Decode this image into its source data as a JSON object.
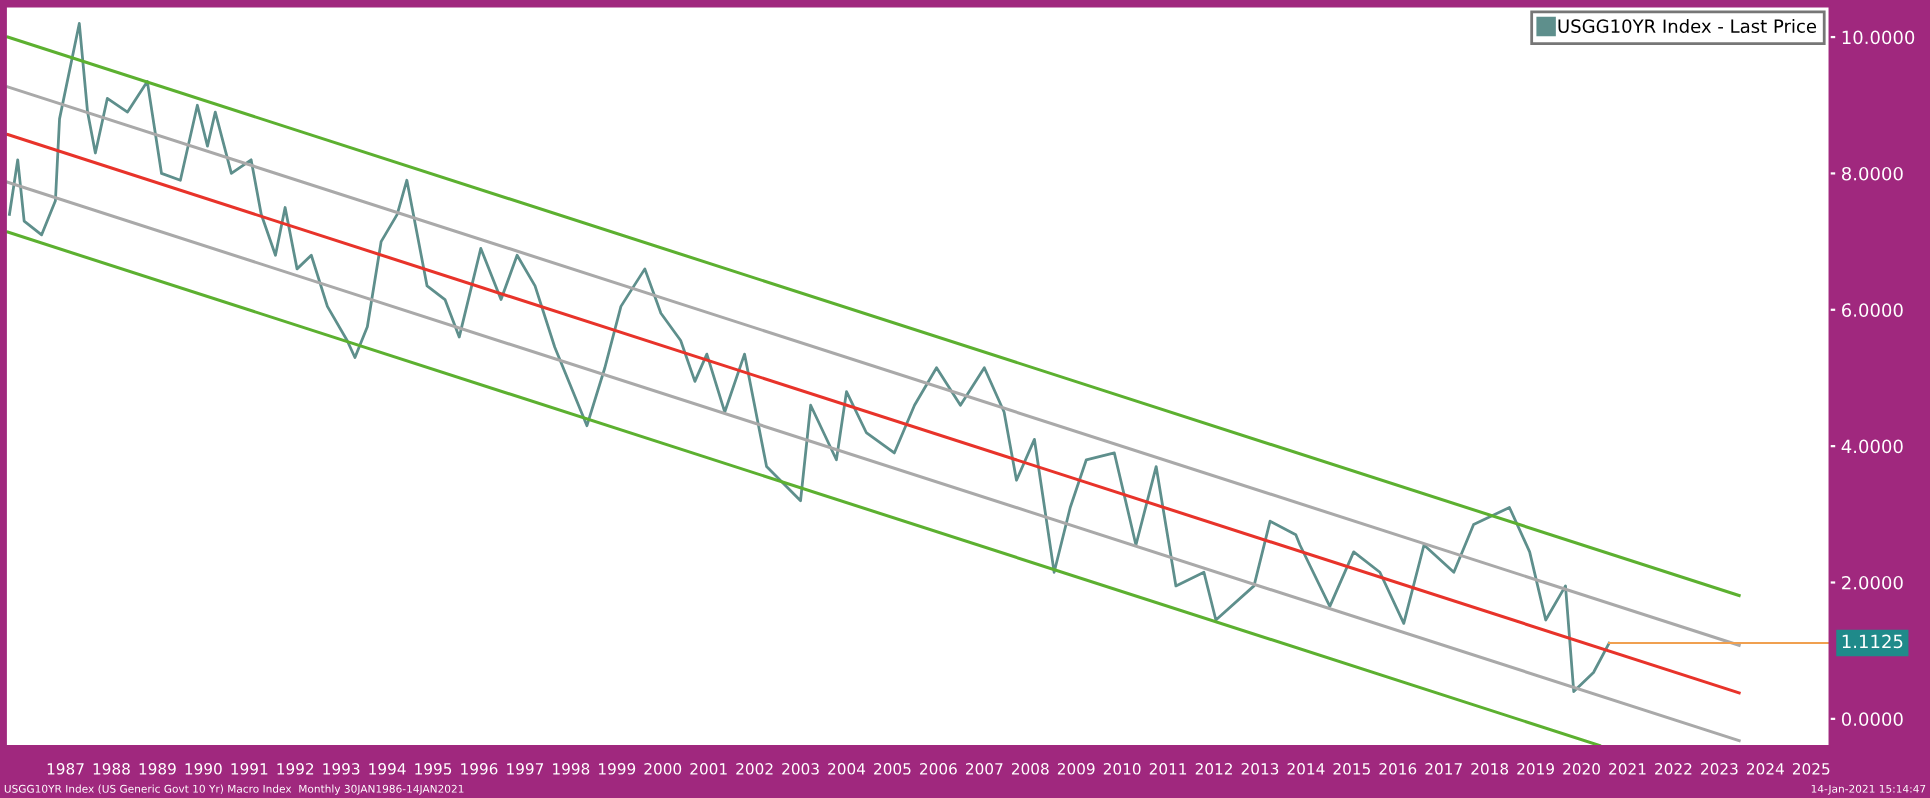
{
  "chart_data": {
    "type": "line",
    "xlim": [
      1986.2,
      2025.9
    ],
    "ylim": [
      -0.4,
      10.45
    ],
    "xticks": [
      {
        "value": 1987.5,
        "label": "1987"
      },
      {
        "value": 1988.5,
        "label": "1988"
      },
      {
        "value": 1989.5,
        "label": "1989"
      },
      {
        "value": 1990.5,
        "label": "1990"
      },
      {
        "value": 1991.5,
        "label": "1991"
      },
      {
        "value": 1992.5,
        "label": "1992"
      },
      {
        "value": 1993.5,
        "label": "1993"
      },
      {
        "value": 1994.5,
        "label": "1994"
      },
      {
        "value": 1995.5,
        "label": "1995"
      },
      {
        "value": 1996.5,
        "label": "1996"
      },
      {
        "value": 1997.5,
        "label": "1997"
      },
      {
        "value": 1998.5,
        "label": "1998"
      },
      {
        "value": 1999.5,
        "label": "1999"
      },
      {
        "value": 2000.5,
        "label": "2000"
      },
      {
        "value": 2001.5,
        "label": "2001"
      },
      {
        "value": 2002.5,
        "label": "2002"
      },
      {
        "value": 2003.5,
        "label": "2003"
      },
      {
        "value": 2004.5,
        "label": "2004"
      },
      {
        "value": 2005.5,
        "label": "2005"
      },
      {
        "value": 2006.5,
        "label": "2006"
      },
      {
        "value": 2007.5,
        "label": "2007"
      },
      {
        "value": 2008.5,
        "label": "2008"
      },
      {
        "value": 2009.5,
        "label": "2009"
      },
      {
        "value": 2010.5,
        "label": "2010"
      },
      {
        "value": 2011.5,
        "label": "2011"
      },
      {
        "value": 2012.5,
        "label": "2012"
      },
      {
        "value": 2013.5,
        "label": "2013"
      },
      {
        "value": 2014.5,
        "label": "2014"
      },
      {
        "value": 2015.5,
        "label": "2015"
      },
      {
        "value": 2016.5,
        "label": "2016"
      },
      {
        "value": 2017.5,
        "label": "2017"
      },
      {
        "value": 2018.5,
        "label": "2018"
      },
      {
        "value": 2019.5,
        "label": "2019"
      },
      {
        "value": 2020.5,
        "label": "2020"
      },
      {
        "value": 2021.5,
        "label": "2021"
      },
      {
        "value": 2022.5,
        "label": "2022"
      },
      {
        "value": 2023.5,
        "label": "2023"
      },
      {
        "value": 2024.5,
        "label": "2024"
      },
      {
        "value": 2025.5,
        "label": "2025"
      }
    ],
    "yticks": [
      {
        "value": 0,
        "label": "0.0000"
      },
      {
        "value": 2,
        "label": "2.0000"
      },
      {
        "value": 4,
        "label": "4.0000"
      },
      {
        "value": 6,
        "label": "6.0000"
      },
      {
        "value": 8,
        "label": "8.0000"
      },
      {
        "value": 10,
        "label": "10.0000"
      }
    ],
    "grid": false,
    "legend": "top right",
    "marker": "none",
    "line_style": "solid",
    "series": [
      {
        "name": "USGG10YR Index - Last Price",
        "color": "#5e8f8c",
        "x": [
          1986.28,
          1986.46,
          1986.6,
          1986.98,
          1987.28,
          1987.37,
          1987.8,
          1987.98,
          1988.15,
          1988.41,
          1988.85,
          1989.28,
          1989.59,
          1990.0,
          1990.37,
          1990.59,
          1990.76,
          1991.11,
          1991.54,
          1991.76,
          1992.07,
          1992.28,
          1992.54,
          1992.85,
          1993.2,
          1993.63,
          1993.8,
          1994.07,
          1994.37,
          1994.72,
          1994.93,
          1995.37,
          1995.76,
          1996.07,
          1996.54,
          1996.98,
          1997.33,
          1997.72,
          1998.15,
          1998.85,
          1999.24,
          1999.59,
          2000.11,
          2000.46,
          2000.89,
          2001.2,
          2001.46,
          2001.85,
          2002.28,
          2002.76,
          2003.5,
          2003.72,
          2004.28,
          2004.5,
          2004.93,
          2005.54,
          2005.98,
          2006.46,
          2006.98,
          2007.5,
          2007.93,
          2008.2,
          2008.59,
          2009.02,
          2009.37,
          2009.72,
          2010.33,
          2010.8,
          2011.24,
          2011.67,
          2012.28,
          2012.54,
          2013.37,
          2013.72,
          2014.28,
          2014.37,
          2015.02,
          2015.54,
          2016.11,
          2016.63,
          2017.07,
          2017.72,
          2018.15,
          2018.93,
          2019.37,
          2019.72,
          2020.15,
          2020.33,
          2020.76,
          2021.1
        ],
        "values": [
          7.4,
          8.2,
          7.3,
          7.1,
          7.6,
          8.8,
          10.2,
          8.9,
          8.3,
          9.1,
          8.9,
          9.35,
          8.0,
          7.9,
          9.0,
          8.4,
          8.9,
          8.0,
          8.2,
          7.4,
          6.8,
          7.5,
          6.6,
          6.8,
          6.05,
          5.55,
          5.3,
          5.75,
          7.0,
          7.4,
          7.9,
          6.35,
          6.15,
          5.6,
          6.9,
          6.15,
          6.8,
          6.35,
          5.45,
          4.3,
          5.15,
          6.05,
          6.6,
          5.95,
          5.55,
          4.95,
          5.35,
          4.5,
          5.35,
          3.7,
          3.2,
          4.6,
          3.8,
          4.8,
          4.2,
          3.9,
          4.6,
          5.15,
          4.6,
          5.15,
          4.5,
          3.5,
          4.1,
          2.15,
          3.1,
          3.8,
          3.9,
          2.55,
          3.7,
          1.95,
          2.15,
          1.45,
          1.95,
          2.9,
          2.7,
          2.55,
          1.65,
          2.45,
          2.15,
          1.4,
          2.55,
          2.15,
          2.85,
          3.1,
          2.45,
          1.45,
          1.95,
          0.4,
          0.68,
          1.11
        ]
      },
      {
        "color": "#e8332a",
        "x": [
          1986.24,
          2023.93
        ],
        "values": [
          8.57,
          0.38
        ]
      },
      {
        "color": "#a9a9a9",
        "x": [
          1986.24,
          2023.93
        ],
        "values": [
          9.27,
          1.08
        ]
      },
      {
        "color": "#a9a9a9",
        "x": [
          1986.24,
          2023.93
        ],
        "values": [
          7.87,
          -0.32
        ]
      },
      {
        "color": "#5cb030",
        "x": [
          1986.24,
          2023.93
        ],
        "values": [
          10.0,
          1.81
        ]
      },
      {
        "color": "#5cb030",
        "x": [
          1986.24,
          2020.89
        ],
        "values": [
          7.14,
          -0.39
        ]
      }
    ],
    "ref_lines": [
      {
        "axis": "y",
        "value": 1.1125,
        "label": "1.1125",
        "color": "#f0a050"
      }
    ],
    "annotations": [
      "USGG10YR Index (US Generic Govt 10 Yr) Macro Index  Monthly 30JAN1986-14JAN2021",
      "14-Jan-2021 15:14:47"
    ]
  }
}
